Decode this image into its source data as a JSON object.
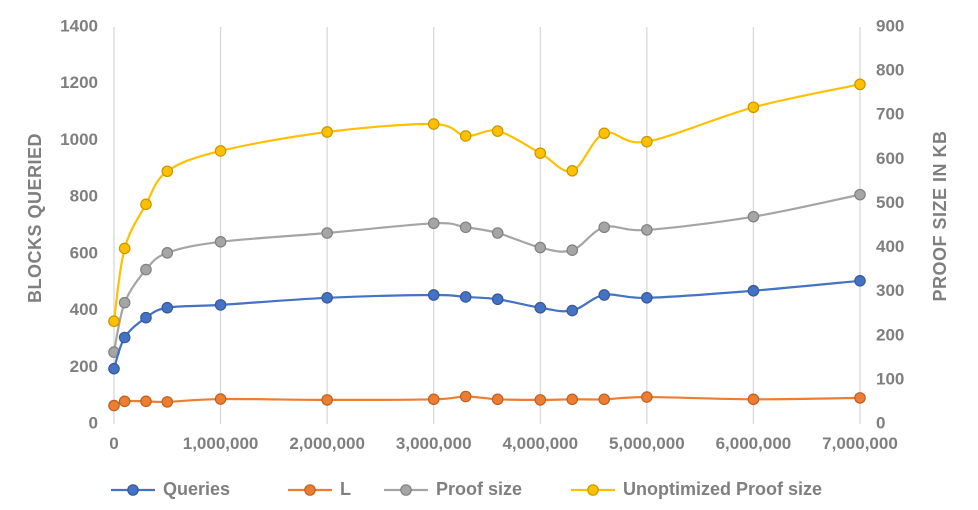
{
  "chart_data": {
    "type": "line",
    "title": "",
    "xlabel": "",
    "ylabel": "BLOCKS  QUERIED",
    "y2label": "PROOF SIZE IN KB",
    "xlim": [
      0,
      7000000
    ],
    "ylim": [
      0,
      1400
    ],
    "y2lim": [
      0,
      900
    ],
    "x_ticks": [
      0,
      1000000,
      2000000,
      3000000,
      4000000,
      5000000,
      6000000,
      7000000
    ],
    "x_tick_labels": [
      "0",
      "1,000,000",
      "2,000,000",
      "3,000,000",
      "4,000,000",
      "5,000,000",
      "6,000,000",
      "7,000,000"
    ],
    "y_ticks": [
      0,
      200,
      400,
      600,
      800,
      1000,
      1200,
      1400
    ],
    "y_tick_labels": [
      "0",
      "200",
      "400",
      "600",
      "800",
      "1000",
      "1200",
      "1400"
    ],
    "y2_ticks": [
      0,
      100,
      200,
      300,
      400,
      500,
      600,
      700,
      800,
      900
    ],
    "y2_tick_labels": [
      "0",
      "100",
      "200",
      "300",
      "400",
      "500",
      "600",
      "700",
      "800",
      "900"
    ],
    "grid": "vertical",
    "legend": "bottom",
    "series": [
      {
        "name": "Queries",
        "axis": "left",
        "color": "#4472c4",
        "x": [
          0,
          100000,
          300000,
          500000,
          1000000,
          2000000,
          3000000,
          3300000,
          3600000,
          4000000,
          4300000,
          4600000,
          5000000,
          6000000,
          7000000
        ],
        "y": [
          195,
          305,
          375,
          410,
          420,
          445,
          455,
          448,
          440,
          410,
          400,
          455,
          445,
          470,
          505
        ]
      },
      {
        "name": "L",
        "axis": "left",
        "color": "#ed7d31",
        "x": [
          0,
          100000,
          300000,
          500000,
          1000000,
          2000000,
          3000000,
          3300000,
          3600000,
          4000000,
          4300000,
          4600000,
          5000000,
          6000000,
          7000000
        ],
        "y": [
          65,
          80,
          80,
          78,
          88,
          85,
          87,
          97,
          87,
          85,
          87,
          87,
          95,
          87,
          92
        ]
      },
      {
        "name": "Proof size",
        "axis": "right",
        "color": "#a5a5a5",
        "x": [
          0,
          100000,
          300000,
          500000,
          1000000,
          2000000,
          3000000,
          3300000,
          3600000,
          4000000,
          4300000,
          4600000,
          5000000,
          6000000,
          7000000
        ],
        "y": [
          163,
          275,
          350,
          388,
          413,
          433,
          455,
          446,
          433,
          400,
          394,
          446,
          440,
          470,
          520
        ]
      },
      {
        "name": "Unoptimized Proof size",
        "axis": "right",
        "color": "#ffc000",
        "x": [
          0,
          100000,
          300000,
          500000,
          1000000,
          2000000,
          3000000,
          3300000,
          3600000,
          4000000,
          4300000,
          4600000,
          5000000,
          6000000,
          7000000
        ],
        "y": [
          233,
          398,
          498,
          573,
          619,
          662,
          680,
          653,
          664,
          614,
          574,
          659,
          640,
          718,
          770
        ]
      }
    ]
  }
}
